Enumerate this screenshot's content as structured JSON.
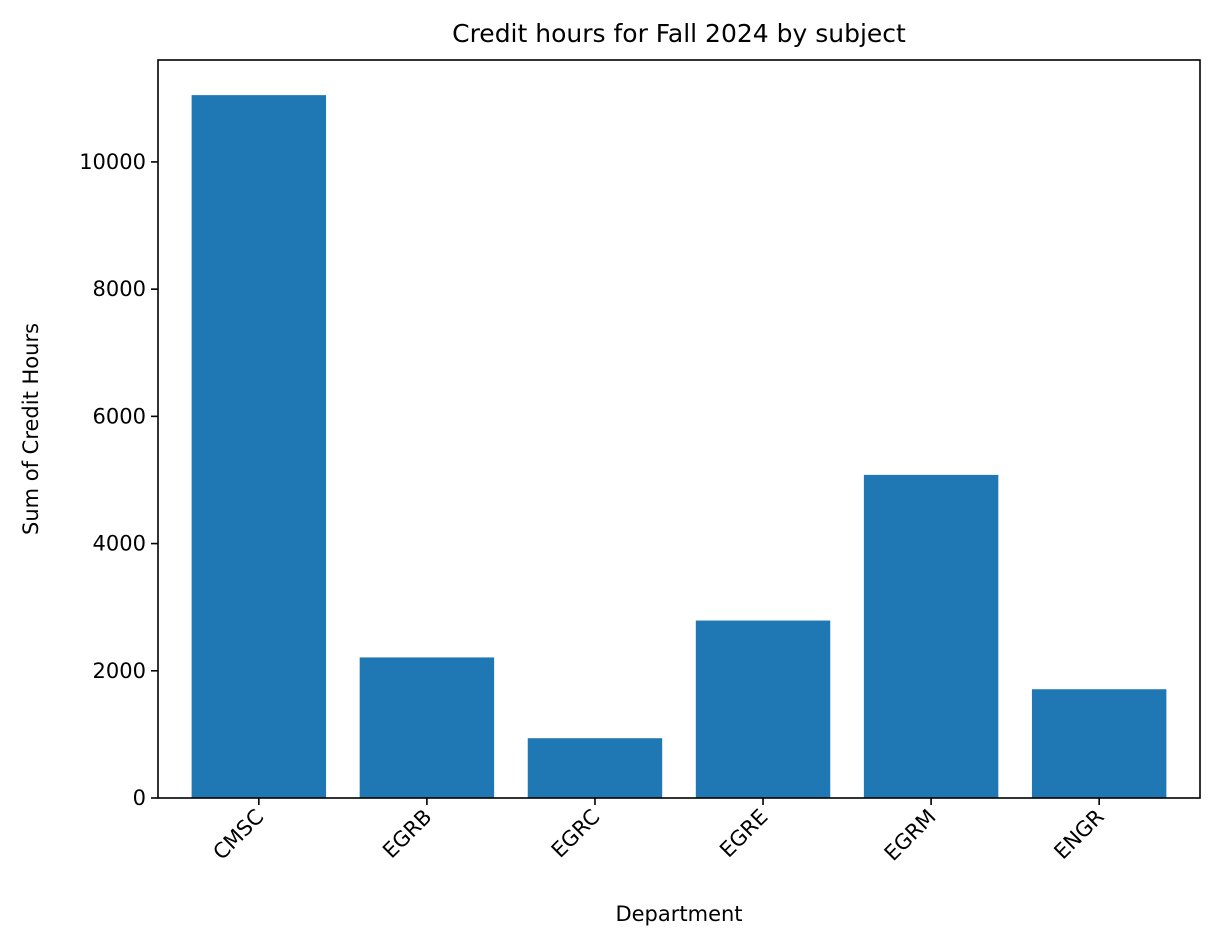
{
  "chart_data": {
    "type": "bar",
    "title": "Credit hours for Fall 2024 by subject",
    "xlabel": "Department",
    "ylabel": "Sum of Credit Hours",
    "categories": [
      "CMSC",
      "EGRB",
      "EGRC",
      "EGRE",
      "EGRM",
      "ENGR"
    ],
    "values": [
      11050,
      2210,
      940,
      2790,
      5080,
      1710
    ],
    "ylim": [
      0,
      11602.5
    ],
    "yticks": [
      0,
      2000,
      4000,
      6000,
      8000,
      10000
    ],
    "ytick_labels": [
      "0",
      "2000",
      "4000",
      "6000",
      "8000",
      "10000"
    ],
    "grid": false,
    "legend": "none",
    "bar_color": "#1f77b4"
  }
}
